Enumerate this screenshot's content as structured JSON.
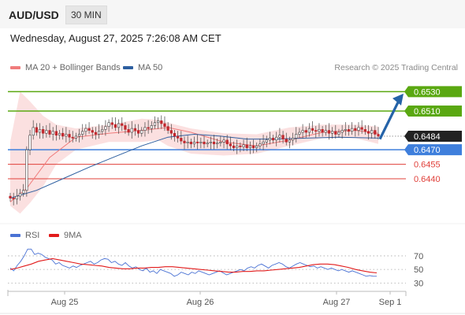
{
  "header": {
    "pair": "AUD/USD",
    "timeframe": "30 MIN"
  },
  "datetime": "Wednesday, August 27, 2025 7:26:08 AM CET",
  "legend": {
    "ma20": "MA 20 + Bollinger Bands",
    "ma50": "MA 50",
    "rsi": "RSI",
    "rsi_ma": "9MA",
    "source": "Research © 2025 Trading Central"
  },
  "colors": {
    "resistance": "#5aa811",
    "pivot": "#3f7fdc",
    "support": "#e0403a",
    "price_tag": "#222222",
    "ma20": "#f07c7c",
    "ma50": "#2d5fa0",
    "bollinger": "#fbe0e0",
    "candle_up": "#ffffff",
    "candle_down": "#c0262c",
    "arrow": "#2563a8",
    "rsi": "#4a72d4",
    "rsi_ma": "#e21b1b"
  },
  "chart_data": {
    "type": "candlestick",
    "price_axis": {
      "range": [
        0.6405,
        0.6545
      ]
    },
    "x_ticks": [
      "Aug 25",
      "Aug 26",
      "Aug 27",
      "Sep 1"
    ],
    "levels": [
      {
        "label": "0.6530",
        "value": 0.653,
        "kind": "resistance"
      },
      {
        "label": "0.6510",
        "value": 0.651,
        "kind": "resistance"
      },
      {
        "label": "0.6484",
        "value": 0.6484,
        "kind": "price"
      },
      {
        "label": "0.6470",
        "value": 0.647,
        "kind": "pivot"
      },
      {
        "label": "0.6455",
        "value": 0.6455,
        "kind": "support"
      },
      {
        "label": "0.6440",
        "value": 0.644,
        "kind": "support"
      }
    ],
    "close": [
      0.642,
      0.6419,
      0.6422,
      0.6425,
      0.6428,
      0.647,
      0.6485,
      0.6493,
      0.6488,
      0.6491,
      0.6487,
      0.649,
      0.6486,
      0.6489,
      0.6485,
      0.6487,
      0.6484,
      0.6486,
      0.6483,
      0.6482,
      0.6484,
      0.6486,
      0.6489,
      0.6492,
      0.649,
      0.6488,
      0.6486,
      0.6489,
      0.6491,
      0.6494,
      0.6498,
      0.6496,
      0.6493,
      0.6497,
      0.6495,
      0.6491,
      0.6488,
      0.6492,
      0.649,
      0.6487,
      0.649,
      0.6493,
      0.6492,
      0.6495,
      0.6498,
      0.65,
      0.6497,
      0.6494,
      0.649,
      0.6487,
      0.6484,
      0.6482,
      0.6479,
      0.6477,
      0.6478,
      0.6476,
      0.6478,
      0.6477,
      0.6478,
      0.6476,
      0.6477,
      0.6478,
      0.6476,
      0.6477,
      0.6478,
      0.648,
      0.6476,
      0.6474,
      0.6472,
      0.6474,
      0.6473,
      0.6475,
      0.6472,
      0.6474,
      0.6472,
      0.6474,
      0.6476,
      0.6478,
      0.648,
      0.6482,
      0.648,
      0.6483,
      0.6485,
      0.6481,
      0.6478,
      0.648,
      0.6482,
      0.6486,
      0.6488,
      0.649,
      0.6488,
      0.6492,
      0.649,
      0.6489,
      0.6491,
      0.6488,
      0.649,
      0.6487,
      0.6489,
      0.6486,
      0.6488,
      0.649,
      0.6491,
      0.6489,
      0.6492,
      0.649,
      0.6493,
      0.6491,
      0.6489,
      0.6487,
      0.649,
      0.6486,
      0.6484
    ],
    "arrow": {
      "from": 0.6481,
      "to": 0.6528
    },
    "bollinger": {
      "x": [
        0,
        3,
        6,
        10,
        14,
        20,
        30,
        40,
        45,
        48,
        55,
        65,
        75,
        85,
        95,
        105,
        112
      ],
      "upper": [
        0.6478,
        0.653,
        0.652,
        0.6505,
        0.6496,
        0.6492,
        0.6496,
        0.6502,
        0.6501,
        0.6498,
        0.6492,
        0.6487,
        0.6486,
        0.6493,
        0.6496,
        0.6496,
        0.6494
      ],
      "lower": [
        0.6412,
        0.6404,
        0.6415,
        0.6432,
        0.6455,
        0.647,
        0.6478,
        0.6478,
        0.648,
        0.6474,
        0.6466,
        0.6464,
        0.6466,
        0.6474,
        0.6482,
        0.6482,
        0.6476
      ]
    },
    "ma20": {
      "x": [
        0,
        5,
        12,
        20,
        30,
        40,
        48,
        55,
        65,
        75,
        85,
        95,
        105,
        112
      ],
      "y": [
        0.6416,
        0.643,
        0.6462,
        0.6483,
        0.6487,
        0.649,
        0.6493,
        0.6488,
        0.6478,
        0.6474,
        0.648,
        0.6488,
        0.649,
        0.6487
      ]
    },
    "ma50": {
      "x": [
        0,
        8,
        16,
        24,
        32,
        40,
        48,
        56,
        64,
        72,
        80,
        90,
        100,
        112
      ],
      "y": [
        0.642,
        0.6428,
        0.644,
        0.6452,
        0.6463,
        0.6474,
        0.6483,
        0.6486,
        0.6484,
        0.6481,
        0.6481,
        0.6482,
        0.6483,
        0.6482
      ]
    },
    "rsi": {
      "range": [
        20,
        85
      ],
      "ticks": [
        {
          "label": "70",
          "value": 70
        },
        {
          "label": "50",
          "value": 50
        },
        {
          "label": "30",
          "value": 30
        }
      ],
      "values": [
        52,
        48,
        56,
        62,
        70,
        80,
        80,
        72,
        74,
        72,
        68,
        66,
        64,
        58,
        60,
        56,
        54,
        52,
        55,
        53,
        56,
        58,
        60,
        62,
        58,
        60,
        64,
        66,
        65,
        60,
        62,
        58,
        56,
        60,
        55,
        52,
        54,
        50,
        48,
        52,
        46,
        48,
        44,
        50,
        48,
        46,
        44,
        40,
        42,
        46,
        44,
        42,
        46,
        44,
        48,
        46,
        44,
        42,
        44,
        46,
        48,
        45,
        42,
        44,
        46,
        48,
        50,
        48,
        52,
        54,
        52,
        56,
        58,
        55,
        52,
        56,
        58,
        60,
        58,
        54,
        52,
        55,
        58,
        60,
        58,
        56,
        54,
        55,
        52,
        54,
        52,
        50,
        52,
        50,
        48,
        50,
        48,
        46,
        48,
        46,
        44,
        42,
        40,
        41,
        40,
        40
      ],
      "ma": [
        50,
        52,
        55,
        58,
        62,
        64,
        66,
        64,
        62,
        60,
        58,
        57,
        56,
        55,
        53,
        52,
        51,
        51,
        52,
        52,
        53,
        53,
        54,
        54,
        53,
        52,
        51,
        50,
        49,
        48,
        47,
        46,
        46,
        47,
        47,
        48,
        48,
        49,
        50,
        51,
        52,
        53,
        55,
        57,
        58,
        58,
        57,
        55,
        53,
        50,
        48,
        46,
        45
      ]
    }
  }
}
